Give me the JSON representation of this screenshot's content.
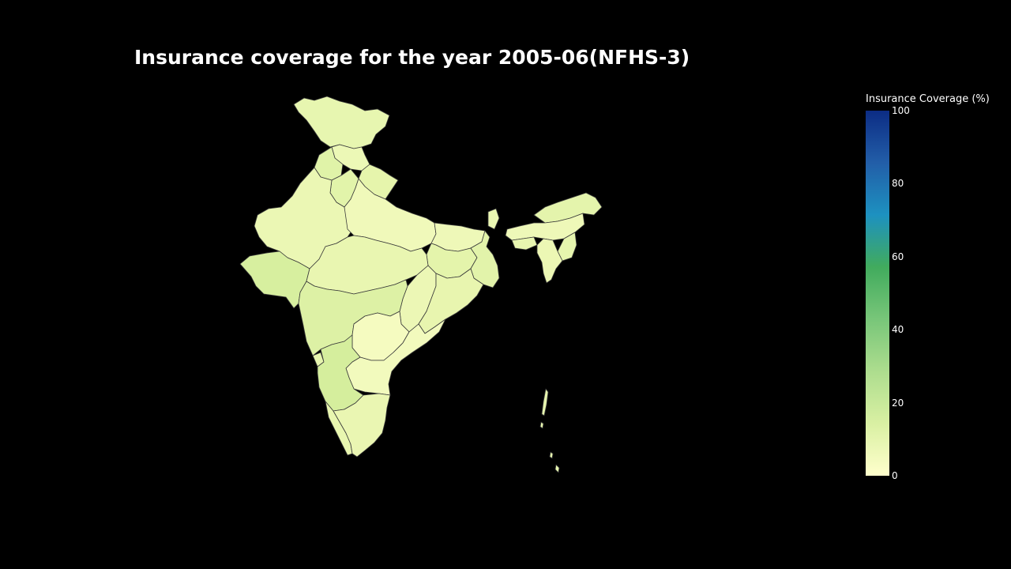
{
  "title": "Insurance coverage for the year 2005-06(NFHS-3)",
  "colorbar": {
    "title": "Insurance Coverage (%)",
    "min": 0,
    "max": 100,
    "ticks": [
      "0",
      "20",
      "40",
      "60",
      "80",
      "100"
    ],
    "colorscale": [
      "#ffffcc",
      "#d9f0a3",
      "#addd8e",
      "#78c679",
      "#41ab5d",
      "#1d91c0",
      "#225ea8",
      "#0c2c84"
    ]
  },
  "map": {
    "background": "#000000",
    "border_color": "#3a3a3a"
  }
}
